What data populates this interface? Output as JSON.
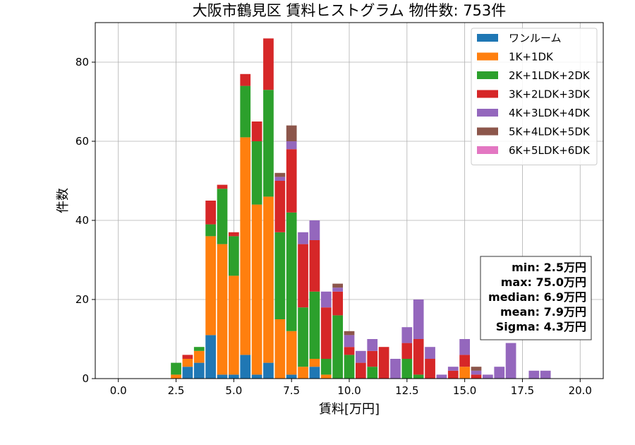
{
  "chart_data": {
    "type": "bar",
    "stacked": true,
    "title": "大阪市鶴見区 賃料ヒストグラム 物件数: 753件",
    "xlabel": "賃料[万円]",
    "ylabel": "件数",
    "xlim": [
      -1.0,
      21.0
    ],
    "ylim": [
      0,
      90
    ],
    "xticks": [
      0.0,
      2.5,
      5.0,
      7.5,
      10.0,
      12.5,
      15.0,
      17.5,
      20.0
    ],
    "xtick_labels": [
      "0.0",
      "2.5",
      "5.0",
      "7.5",
      "10.0",
      "12.5",
      "15.0",
      "17.5",
      "20.0"
    ],
    "yticks": [
      0,
      20,
      40,
      60,
      80
    ],
    "ytick_labels": [
      "0",
      "20",
      "40",
      "60",
      "80"
    ],
    "grid": true,
    "legend_position": "top-right",
    "bin_width": 0.5,
    "bins": [
      2.5,
      3.0,
      3.5,
      4.0,
      4.5,
      5.0,
      5.5,
      6.0,
      6.5,
      7.0,
      7.5,
      8.0,
      8.5,
      9.0,
      9.5,
      10.0,
      10.5,
      11.0,
      11.5,
      12.0,
      12.5,
      13.0,
      13.5,
      14.0,
      14.5,
      15.0,
      15.5,
      16.0,
      16.5,
      17.0,
      17.5,
      18.0,
      18.5
    ],
    "series": [
      {
        "name": "ワンルーム",
        "color": "#1f77b4",
        "values": [
          0,
          3,
          4,
          11,
          1,
          1,
          6,
          1,
          4,
          0,
          1,
          0,
          3,
          0,
          0,
          0,
          0,
          0,
          0,
          0,
          0,
          0,
          0,
          0,
          0,
          0,
          0,
          0,
          0,
          0,
          0,
          0,
          0
        ]
      },
      {
        "name": "1K+1DK",
        "color": "#ff7f0e",
        "values": [
          1,
          2,
          3,
          25,
          33,
          25,
          55,
          43,
          42,
          15,
          11,
          3,
          2,
          1,
          0,
          0,
          0,
          0,
          0,
          0,
          0,
          0,
          0,
          0,
          0,
          3,
          0,
          0,
          0,
          0,
          0,
          0,
          0
        ]
      },
      {
        "name": "2K+1LDK+2DK",
        "color": "#2ca02c",
        "values": [
          3,
          0,
          1,
          3,
          14,
          10,
          13,
          16,
          27,
          22,
          30,
          15,
          17,
          4,
          16,
          6,
          0,
          3,
          0,
          0,
          5,
          1,
          0,
          0,
          0,
          0,
          0,
          0,
          0,
          0,
          0,
          0,
          0
        ]
      },
      {
        "name": "3K+2LDK+3DK",
        "color": "#d62728",
        "values": [
          0,
          1,
          0,
          6,
          1,
          1,
          3,
          5,
          13,
          13,
          16,
          16,
          13,
          13,
          6,
          2,
          4,
          4,
          8,
          0,
          4,
          9,
          5,
          0,
          2,
          3,
          1,
          0,
          0,
          0,
          0,
          0,
          0
        ]
      },
      {
        "name": "4K+3LDK+4DK",
        "color": "#9467bd",
        "values": [
          0,
          0,
          0,
          0,
          0,
          0,
          0,
          0,
          0,
          1,
          2,
          3,
          5,
          4,
          1,
          3,
          3,
          3,
          0,
          5,
          4,
          10,
          3,
          1,
          1,
          4,
          1,
          1,
          3,
          9,
          0,
          2,
          2
        ]
      },
      {
        "name": "5K+4LDK+5DK",
        "color": "#8c564b",
        "values": [
          0,
          0,
          0,
          0,
          0,
          0,
          0,
          0,
          0,
          1,
          4,
          0,
          0,
          0,
          1,
          1,
          0,
          0,
          0,
          0,
          0,
          0,
          0,
          0,
          0,
          0,
          1,
          0,
          0,
          0,
          0,
          0,
          0
        ]
      },
      {
        "name": "6K+5LDK+6DK",
        "color": "#e377c2",
        "values": [
          0,
          0,
          0,
          0,
          0,
          0,
          0,
          0,
          0,
          0,
          0,
          0,
          0,
          0,
          0,
          0,
          0,
          0,
          0,
          0,
          0,
          0,
          0,
          0,
          0,
          0,
          0,
          0,
          0,
          0,
          0,
          0,
          0
        ]
      }
    ],
    "annotations": [
      "min: 2.5万円",
      "max: 75.0万円",
      "median: 6.9万円",
      "mean: 7.9万円",
      "Sigma: 4.3万円"
    ]
  }
}
